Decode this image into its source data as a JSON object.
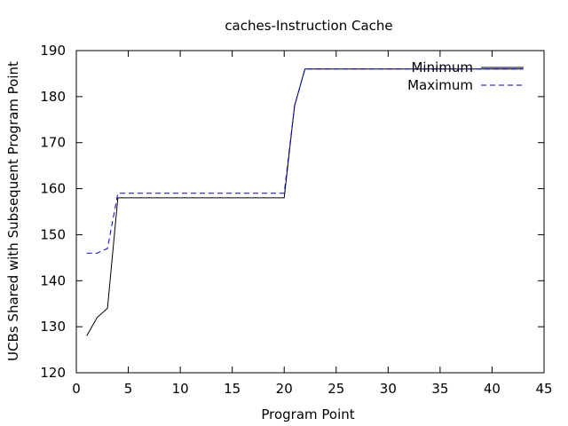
{
  "chart_data": {
    "type": "line",
    "title": "caches-Instruction Cache",
    "xlabel": "Program Point",
    "ylabel": "UCBs Shared with Subsequent Program Point",
    "xlim": [
      0,
      45
    ],
    "ylim": [
      120,
      190
    ],
    "xticks": [
      0,
      5,
      10,
      15,
      20,
      25,
      30,
      35,
      40,
      45
    ],
    "yticks": [
      120,
      130,
      140,
      150,
      160,
      170,
      180,
      190
    ],
    "grid": false,
    "legend_position": "top-right",
    "series": [
      {
        "name": "Minimum",
        "color": "#000000",
        "dash": "solid",
        "x": [
          1,
          2,
          3,
          4,
          5,
          6,
          7,
          8,
          9,
          10,
          11,
          12,
          13,
          14,
          15,
          16,
          17,
          18,
          19,
          20,
          21,
          22,
          23,
          24,
          25,
          26,
          27,
          28,
          29,
          30,
          31,
          32,
          33,
          34,
          35,
          36,
          37,
          38,
          39,
          40,
          41,
          42,
          43
        ],
        "y": [
          128,
          132,
          134,
          158,
          158,
          158,
          158,
          158,
          158,
          158,
          158,
          158,
          158,
          158,
          158,
          158,
          158,
          158,
          158,
          158,
          178,
          186,
          186,
          186,
          186,
          186,
          186,
          186,
          186,
          186,
          186,
          186,
          186,
          186,
          186,
          186,
          186,
          186,
          186,
          186,
          186,
          186,
          186
        ]
      },
      {
        "name": "Maximum",
        "color": "#0000cc",
        "dash": "dashed",
        "x": [
          1,
          2,
          3,
          4,
          5,
          6,
          7,
          8,
          9,
          10,
          11,
          12,
          13,
          14,
          15,
          16,
          17,
          18,
          19,
          20,
          21,
          22,
          23,
          24,
          25,
          26,
          27,
          28,
          29,
          30,
          31,
          32,
          33,
          34,
          35,
          36,
          37,
          38,
          39,
          40,
          41,
          42,
          43
        ],
        "y": [
          146,
          146,
          147,
          159,
          159,
          159,
          159,
          159,
          159,
          159,
          159,
          159,
          159,
          159,
          159,
          159,
          159,
          159,
          159,
          159,
          178,
          186,
          186,
          186,
          186,
          186,
          186,
          186,
          186,
          186,
          186,
          186,
          186,
          186,
          186,
          186,
          186,
          186,
          186,
          186,
          186,
          186,
          186
        ]
      }
    ]
  }
}
